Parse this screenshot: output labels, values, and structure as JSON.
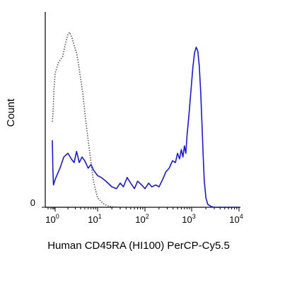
{
  "chart_data": {
    "type": "line",
    "xlabel": "Human CD45RA (HI100) PerCP-Cy5.5",
    "ylabel": "Count",
    "x_scale": "biexponential",
    "xlim": [
      0,
      10000
    ],
    "ylim": [
      0,
      100
    ],
    "x_ticks": [
      {
        "base": "10",
        "exp": "0",
        "value": 1
      },
      {
        "base": "10",
        "exp": "1",
        "value": 10
      },
      {
        "base": "10",
        "exp": "2",
        "value": 100
      },
      {
        "base": "10",
        "exp": "3",
        "value": 1000
      },
      {
        "base": "10",
        "exp": "4",
        "value": 10000
      }
    ],
    "y_ticks": [
      {
        "label": "0",
        "value": 0
      }
    ],
    "grid": false,
    "legend": "none",
    "series": [
      {
        "style": "dotted",
        "color": "#555555",
        "points": [
          [
            0.5,
            46
          ],
          [
            0.6,
            50
          ],
          [
            0.7,
            56
          ],
          [
            0.8,
            64
          ],
          [
            1.0,
            72
          ],
          [
            1.2,
            78
          ],
          [
            1.5,
            81
          ],
          [
            1.8,
            89
          ],
          [
            2.0,
            93
          ],
          [
            2.2,
            94
          ],
          [
            2.5,
            91
          ],
          [
            2.8,
            87
          ],
          [
            3.2,
            83
          ],
          [
            3.6,
            76
          ],
          [
            4.0,
            69
          ],
          [
            4.5,
            61
          ],
          [
            5.0,
            51
          ],
          [
            6.0,
            36
          ],
          [
            7.0,
            24
          ],
          [
            8.0,
            14
          ],
          [
            9.0,
            9
          ],
          [
            10,
            5
          ],
          [
            12,
            3
          ],
          [
            14,
            1.5
          ],
          [
            17,
            0.7
          ],
          [
            20,
            0.3
          ],
          [
            30,
            0
          ],
          [
            100,
            0
          ],
          [
            1000,
            0
          ],
          [
            10000,
            0
          ]
        ]
      },
      {
        "style": "solid",
        "color": "#1a1acd",
        "points": [
          [
            0.5,
            36
          ],
          [
            0.6,
            20
          ],
          [
            0.7,
            12
          ],
          [
            0.8,
            13
          ],
          [
            1.0,
            15
          ],
          [
            1.3,
            21
          ],
          [
            1.6,
            27
          ],
          [
            2.0,
            29
          ],
          [
            2.4,
            26
          ],
          [
            2.8,
            24
          ],
          [
            3.2,
            30
          ],
          [
            3.7,
            24
          ],
          [
            4.3,
            27
          ],
          [
            5.0,
            25
          ],
          [
            6.0,
            21
          ],
          [
            7.0,
            23
          ],
          [
            8.0,
            20
          ],
          [
            10,
            17
          ],
          [
            12,
            16
          ],
          [
            15,
            14
          ],
          [
            20,
            11
          ],
          [
            25,
            10
          ],
          [
            30,
            13
          ],
          [
            35,
            11
          ],
          [
            42,
            16
          ],
          [
            50,
            13
          ],
          [
            60,
            10
          ],
          [
            70,
            14
          ],
          [
            85,
            12
          ],
          [
            100,
            10
          ],
          [
            120,
            13
          ],
          [
            140,
            11
          ],
          [
            170,
            12
          ],
          [
            200,
            11
          ],
          [
            240,
            15
          ],
          [
            280,
            19
          ],
          [
            330,
            21
          ],
          [
            390,
            25
          ],
          [
            450,
            24
          ],
          [
            500,
            29
          ],
          [
            550,
            26
          ],
          [
            600,
            31
          ],
          [
            650,
            27
          ],
          [
            700,
            33
          ],
          [
            750,
            29
          ],
          [
            800,
            39
          ],
          [
            880,
            50
          ],
          [
            970,
            63
          ],
          [
            1060,
            75
          ],
          [
            1150,
            83
          ],
          [
            1250,
            86
          ],
          [
            1350,
            84
          ],
          [
            1450,
            76
          ],
          [
            1550,
            62
          ],
          [
            1650,
            45
          ],
          [
            1750,
            28
          ],
          [
            1850,
            14
          ],
          [
            2000,
            5
          ],
          [
            2200,
            1.5
          ],
          [
            2600,
            0.4
          ],
          [
            3000,
            0
          ],
          [
            10000,
            0
          ]
        ]
      }
    ]
  }
}
